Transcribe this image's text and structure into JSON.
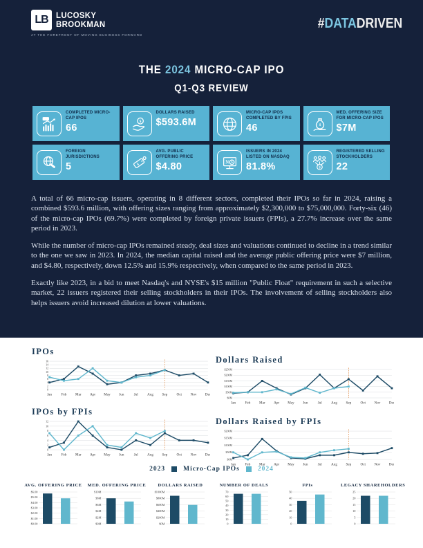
{
  "header": {
    "logo_monogram": "LB",
    "brand_line1": "LUCOSKY",
    "brand_line2": "BROOKMAN",
    "tagline": "AT THE FOREFRONT OF MOVING BUSINESS FORWARD",
    "hashtag_prefix": "#",
    "hashtag_highlight": "DATA",
    "hashtag_rest": "DRIVEN"
  },
  "title": {
    "prefix": "THE ",
    "year": "2024",
    "suffix": " MICRO-CAP IPO",
    "line2": "Q1-Q3 REVIEW"
  },
  "stat_cards": [
    {
      "icon": "ipo-bar-chart-icon",
      "label": "COMPLETED MICRO-CAP IPOS",
      "value": "66"
    },
    {
      "icon": "hand-coin-icon",
      "label": "DOLLARS RAISED",
      "value": "$593.6M"
    },
    {
      "icon": "globe-icon",
      "label": "MICRO-CAP IPOS COMPLETED BY FPIS",
      "value": "46"
    },
    {
      "icon": "money-bag-hand-icon",
      "label": "MED. OFFERING SIZE FOR MICRO-CAP IPOS",
      "value": "$7M"
    },
    {
      "icon": "globe-gavel-icon",
      "label": "FOREIGN JURISDICTIONS",
      "value": "5"
    },
    {
      "icon": "price-tag-icon",
      "label": "AVG. PUBLIC OFFERING PRICE",
      "value": "$4.80"
    },
    {
      "icon": "nasdaq-monitor-icon",
      "label": "ISSUERS IN 2024 LISTED ON NASDAQ",
      "value": "81.8%"
    },
    {
      "icon": "selling-stockholders-icon",
      "label": "REGISTERED SELLING STOCKHOLDERS",
      "value": "22"
    }
  ],
  "body": {
    "paragraphs": [
      "A total of 66 micro-cap issuers, operating in 8 different sectors, completed their IPOs so far in 2024, raising a combined $593.6 million, with offering sizes ranging from approximately $2,300,000 to $75,000,000. Forty-six (46) of the micro-cap IPOs (69.7%) were completed by foreign private issuers (FPIs), a 27.7% increase over the same period in 2023.",
      "While the number of micro-cap IPOs remained steady, deal sizes and valuations continued to decline in a trend similar to the one we saw in 2023. In 2024, the median capital raised and the average public offering price were $7 million, and $4.80, respectively, down 12.5% and 15.9% respectively, when compared to the same period in 2023.",
      "Exactly like 2023, in a bid to meet Nasdaq's and NYSE's $15 million \"Public Float\" requirement in such a selective market, 22 issuers registered their selling stockholders in their IPOs. The involvement of selling stockholders also helps issuers avoid increased dilution at lower valuations."
    ]
  },
  "legend": {
    "label_2023": "2023",
    "middle_label": "Micro-Cap IPOs",
    "label_2024": "2024"
  },
  "colors": {
    "navy": "#15213A",
    "card_blue": "#57B3D3",
    "accent_blue": "#7CC5E0",
    "series_2023": "#1D4B66",
    "series_2024": "#60B7CD",
    "marker_orange": "#E08A45"
  },
  "chart_data": [
    {
      "type": "line",
      "key": "ipos",
      "title": "IPOs",
      "x": [
        "Jan",
        "Feb",
        "Mar",
        "Apr",
        "May",
        "Jun",
        "Jul",
        "Aug",
        "Sep",
        "Oct",
        "Nov",
        "Dec"
      ],
      "ylim": [
        0,
        16
      ],
      "yticks": [
        "0",
        "2",
        "4",
        "6",
        "8",
        "10",
        "12",
        "14",
        "16"
      ],
      "marker_month": "Sep",
      "marker_index": 8,
      "series": [
        {
          "name": "2023",
          "values": [
            4,
            6,
            13,
            9,
            3,
            4,
            8,
            9,
            11,
            8,
            9,
            4
          ]
        },
        {
          "name": "2024",
          "values": [
            7,
            5,
            6,
            12,
            5,
            4,
            7,
            8,
            11
          ]
        }
      ]
    },
    {
      "type": "line",
      "key": "dollars_raised",
      "title": "Dollars Raised",
      "x": [
        "Jan",
        "Feb",
        "Mar",
        "Apr",
        "May",
        "Jun",
        "Jul",
        "Aug",
        "Sep",
        "Oct",
        "Nov",
        "Dec"
      ],
      "ylim": [
        0,
        250
      ],
      "yticks": [
        "$0M",
        "$50M",
        "$100M",
        "$150M",
        "$200M",
        "$250M"
      ],
      "marker_month": "Sep",
      "marker_index": 8,
      "series": [
        {
          "name": "2023",
          "values": [
            40,
            50,
            150,
            85,
            30,
            85,
            205,
            85,
            165,
            65,
            190,
            85
          ]
        },
        {
          "name": "2024",
          "values": [
            45,
            50,
            50,
            75,
            35,
            90,
            45,
            85,
            100
          ]
        }
      ]
    },
    {
      "type": "line",
      "key": "ipos_by_fpis",
      "title": "IPOs by FPIs",
      "x": [
        "Jan",
        "Feb",
        "Mar",
        "Apr",
        "May",
        "Jun",
        "Jul",
        "Aug",
        "Sep",
        "Oct",
        "Nov",
        "Dec"
      ],
      "ylim": [
        0,
        12
      ],
      "yticks": [
        "0",
        "2",
        "4",
        "6",
        "8",
        "10",
        "12"
      ],
      "marker_month": "Sep",
      "marker_index": 8,
      "series": [
        {
          "name": "2023",
          "values": [
            1,
            3,
            12,
            6,
            1,
            0,
            4,
            2,
            7,
            4,
            4,
            3
          ]
        },
        {
          "name": "2024",
          "values": [
            7,
            0,
            6,
            10,
            2,
            1,
            7,
            5,
            8
          ]
        }
      ]
    },
    {
      "type": "line",
      "key": "dollars_raised_by_fpis",
      "title": "Dollars Raised by FPIs",
      "x": [
        "Jan",
        "Feb",
        "Mar",
        "Apr",
        "May",
        "Jun",
        "Jul",
        "Aug",
        "Sep",
        "Oct",
        "Nov",
        "Dec"
      ],
      "ylim": [
        0,
        200
      ],
      "yticks": [
        "$0M",
        "$50M",
        "$100M",
        "$150M",
        "$200M"
      ],
      "marker_month": "Sep",
      "marker_index": 8,
      "series": [
        {
          "name": "2023",
          "values": [
            10,
            30,
            145,
            60,
            10,
            5,
            30,
            30,
            50,
            40,
            45,
            80
          ]
        },
        {
          "name": "2024",
          "values": [
            50,
            0,
            50,
            55,
            15,
            10,
            50,
            65,
            75
          ]
        }
      ]
    },
    {
      "type": "bar",
      "key": "avg_offering_price",
      "title": "AVG. OFFERING PRICE",
      "categories": [
        "2023",
        "2024"
      ],
      "values": [
        5.71,
        4.8
      ],
      "ymax": 6,
      "yticks": [
        "$0.00",
        "$1.00",
        "$2.00",
        "$3.00",
        "$4.00",
        "$5.00",
        "$6.00"
      ]
    },
    {
      "type": "bar",
      "key": "med_offering_price",
      "title": "MED. OFFERING PRICE",
      "categories": [
        "2023",
        "2024"
      ],
      "values": [
        8,
        7
      ],
      "ymax": 10,
      "yticks": [
        "$0M",
        "$2M",
        "$4M",
        "$6M",
        "$8M",
        "$10M"
      ]
    },
    {
      "type": "bar",
      "key": "dollars_raised_total",
      "title": "DOLLARS RAISED",
      "categories": [
        "2023",
        "2024"
      ],
      "values": [
        880,
        593.6
      ],
      "ymax": 1000,
      "yticks": [
        "$0M",
        "$200M",
        "$400M",
        "$600M",
        "$800M",
        "$1000M"
      ]
    },
    {
      "type": "bar",
      "key": "number_of_deals",
      "title": "NUMBER OF DEALS",
      "categories": [
        "2023",
        "2024"
      ],
      "values": [
        66,
        66
      ],
      "ymax": 70,
      "yticks": [
        "0",
        "10",
        "20",
        "30",
        "40",
        "50",
        "60",
        "70"
      ]
    },
    {
      "type": "bar",
      "key": "fpis",
      "title": "FPIs",
      "categories": [
        "2023",
        "2024"
      ],
      "values": [
        36,
        46
      ],
      "ymax": 50,
      "yticks": [
        "0",
        "10",
        "20",
        "30",
        "40",
        "50"
      ]
    },
    {
      "type": "bar",
      "key": "legacy_shareholders",
      "title": "LEGACY SHAREHOLDERS",
      "categories": [
        "2023",
        "2024"
      ],
      "values": [
        22,
        22
      ],
      "ymax": 25,
      "yticks": [
        "0",
        "5",
        "10",
        "15",
        "20",
        "25"
      ]
    }
  ]
}
